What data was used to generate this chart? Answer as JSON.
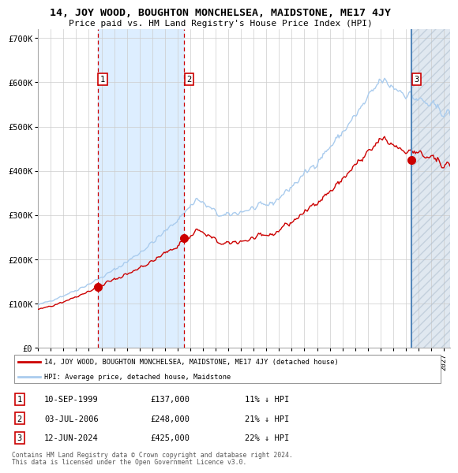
{
  "title": "14, JOY WOOD, BOUGHTON MONCHELSEA, MAIDSTONE, ME17 4JY",
  "subtitle": "Price paid vs. HM Land Registry's House Price Index (HPI)",
  "hpi_label": "HPI: Average price, detached house, Maidstone",
  "price_label": "14, JOY WOOD, BOUGHTON MONCHELSEA, MAIDSTONE, ME17 4JY (detached house)",
  "footer1": "Contains HM Land Registry data © Crown copyright and database right 2024.",
  "footer2": "This data is licensed under the Open Government Licence v3.0.",
  "hpi_color": "#aaccee",
  "price_color": "#cc0000",
  "shade_between_color": "#ddeeff",
  "ylim_max": 720000,
  "yticks": [
    0,
    100000,
    200000,
    300000,
    400000,
    500000,
    600000,
    700000
  ],
  "ytick_labels": [
    "£0",
    "£100K",
    "£200K",
    "£300K",
    "£400K",
    "£500K",
    "£600K",
    "£700K"
  ],
  "xlim_start": 1995.0,
  "xlim_end": 2027.5,
  "sale1_x": 1999.69,
  "sale1_y": 137000,
  "sale1_hpi_y": 154000,
  "sale2_x": 2006.5,
  "sale2_y": 248000,
  "sale2_hpi_y": 314000,
  "sale3_x": 2024.44,
  "sale3_y": 425000,
  "sale3_hpi_y": 545000,
  "sale1_date": "10-SEP-1999",
  "sale1_price": "£137,000",
  "sale1_hpi_pct": "11% ↓ HPI",
  "sale2_date": "03-JUL-2006",
  "sale2_price": "£248,000",
  "sale2_hpi_pct": "21% ↓ HPI",
  "sale3_date": "12-JUN-2024",
  "sale3_price": "£425,000",
  "sale3_hpi_pct": "22% ↓ HPI",
  "grid_color": "#cccccc",
  "bg_color": "#ffffff"
}
